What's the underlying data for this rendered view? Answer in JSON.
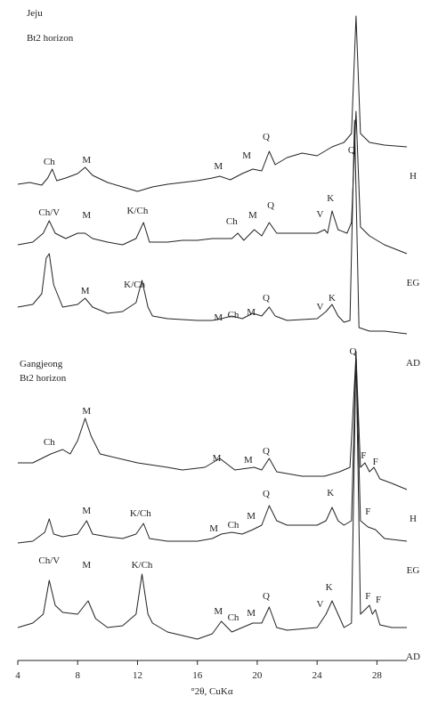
{
  "chart_data": {
    "type": "line",
    "xlabel": "°2θ, CuKα",
    "xlim": [
      4,
      30
    ],
    "xticks": [
      4,
      8,
      12,
      16,
      20,
      24,
      28
    ],
    "ylim": [
      0,
      742
    ],
    "color": "#222222",
    "group_titles": [
      [
        "Jeju",
        "Bt2 horizon"
      ],
      [
        "Gangjeong",
        "Bt2 horizon"
      ]
    ],
    "series": [
      {
        "name": "H",
        "x": [
          4,
          4.8,
          5.6,
          6.0,
          6.3,
          6.6,
          7.2,
          8.0,
          8.5,
          9.0,
          10,
          11,
          12,
          13,
          14,
          15,
          16,
          17,
          17.5,
          18.2,
          19.0,
          19.7,
          20.3,
          20.8,
          21.2,
          22,
          23,
          24,
          25,
          25.8,
          26.3,
          26.6,
          26.9,
          27.5,
          28.5,
          30
        ],
        "values": [
          535,
          537,
          534,
          542,
          552,
          539,
          542,
          547,
          554,
          545,
          537,
          532,
          527,
          532,
          535,
          537,
          539,
          542,
          544,
          540,
          547,
          552,
          550,
          572,
          557,
          565,
          570,
          567,
          577,
          582,
          592,
          724,
          592,
          582,
          579,
          577
        ]
      },
      {
        "name": "EG",
        "x": [
          4,
          5,
          5.7,
          6.1,
          6.5,
          7.2,
          8.0,
          8.5,
          9.0,
          10,
          11,
          11.9,
          12.4,
          12.8,
          14,
          15,
          16,
          17,
          18.3,
          18.7,
          19.1,
          19.8,
          20.3,
          20.8,
          21.3,
          22,
          23,
          24,
          24.5,
          24.7,
          25,
          25.4,
          26,
          26.3,
          26.6,
          26.9,
          27.5,
          28.5,
          30
        ],
        "values": [
          467,
          470,
          480,
          494,
          480,
          474,
          480,
          480,
          474,
          470,
          467,
          474,
          492,
          470,
          470,
          472,
          472,
          474,
          474,
          480,
          472,
          484,
          477,
          492,
          480,
          480,
          480,
          480,
          484,
          480,
          505,
          484,
          480,
          492,
          617,
          487,
          477,
          467,
          457
        ]
      },
      {
        "name": "AD",
        "x": [
          4,
          5,
          5.6,
          5.9,
          6.1,
          6.4,
          7.0,
          8.0,
          8.5,
          9.0,
          10,
          11,
          11.9,
          12.3,
          12.7,
          13,
          14,
          16,
          17,
          17.6,
          18.3,
          19.0,
          19.7,
          20.3,
          20.8,
          21.2,
          22,
          24,
          24.6,
          25,
          25.4,
          25.8,
          26.2,
          26.5,
          26.8,
          27.5,
          28.5,
          30
        ],
        "values": [
          397,
          400,
          412,
          452,
          457,
          422,
          397,
          400,
          407,
          397,
          390,
          392,
          402,
          427,
          397,
          387,
          384,
          382,
          382,
          384,
          387,
          384,
          390,
          387,
          397,
          387,
          382,
          384,
          392,
          400,
          387,
          380,
          382,
          607,
          374,
          370,
          370,
          367
        ]
      },
      {
        "name": "H",
        "x": [
          4,
          5,
          6.2,
          7,
          7.5,
          8.0,
          8.5,
          8.9,
          9.5,
          10,
          12,
          14,
          15,
          16.5,
          17.5,
          18.5,
          19.8,
          20.3,
          20.8,
          21.3,
          23,
          24.5,
          25.5,
          26.2,
          26.6,
          26.9,
          27.2,
          27.5,
          27.8,
          28.2,
          29,
          30
        ],
        "values": [
          222,
          222,
          232,
          237,
          232,
          247,
          272,
          252,
          232,
          230,
          222,
          217,
          214,
          217,
          227,
          214,
          217,
          214,
          227,
          212,
          207,
          207,
          212,
          217,
          344,
          217,
          222,
          212,
          217,
          204,
          199,
          192
        ]
      },
      {
        "name": "EG",
        "x": [
          4,
          5,
          5.8,
          6.1,
          6.4,
          7,
          8,
          8.6,
          9,
          10,
          11,
          11.9,
          12.4,
          12.8,
          14,
          16,
          17,
          17.6,
          18.3,
          19,
          19.7,
          20.3,
          20.8,
          21.3,
          22,
          24,
          24.6,
          25,
          25.4,
          25.8,
          26.3,
          26.6,
          26.9,
          27.4,
          27.9,
          28.5,
          30
        ],
        "values": [
          132,
          134,
          144,
          159,
          142,
          139,
          142,
          157,
          142,
          139,
          137,
          142,
          154,
          137,
          134,
          134,
          137,
          142,
          144,
          142,
          147,
          152,
          174,
          157,
          152,
          152,
          157,
          172,
          157,
          152,
          157,
          347,
          157,
          150,
          147,
          137,
          134
        ]
      },
      {
        "name": "AD",
        "x": [
          4,
          5,
          5.7,
          6.1,
          6.5,
          7,
          8,
          8.7,
          9.2,
          10,
          11,
          11.9,
          12.3,
          12.7,
          13,
          14,
          16,
          17,
          17.6,
          18.3,
          19,
          19.7,
          20.3,
          20.8,
          21.3,
          22,
          24,
          24.6,
          25,
          25.4,
          25.8,
          26.3,
          26.6,
          26.9,
          27.5,
          27.7,
          27.9,
          28.2,
          29,
          30
        ],
        "values": [
          37,
          42,
          52,
          90,
          62,
          54,
          52,
          67,
          47,
          37,
          39,
          52,
          97,
          52,
          42,
          32,
          24,
          30,
          44,
          32,
          37,
          42,
          42,
          60,
          37,
          34,
          37,
          52,
          67,
          52,
          37,
          42,
          347,
          52,
          62,
          52,
          57,
          40,
          37,
          37
        ]
      }
    ],
    "annotations": [
      {
        "text": "Ch",
        "x": 6.1,
        "y": 557
      },
      {
        "text": "M",
        "x": 8.6,
        "y": 559
      },
      {
        "text": "M",
        "x": 17.4,
        "y": 552
      },
      {
        "text": "M",
        "x": 19.3,
        "y": 564
      },
      {
        "text": "Q",
        "x": 20.6,
        "y": 585
      },
      {
        "text": "Q",
        "x": 26.3,
        "y": 570
      },
      {
        "text": "Ch/V",
        "x": 6.1,
        "y": 500
      },
      {
        "text": "M",
        "x": 8.6,
        "y": 497
      },
      {
        "text": "K/Ch",
        "x": 12.0,
        "y": 502
      },
      {
        "text": "Ch",
        "x": 18.3,
        "y": 490
      },
      {
        "text": "M",
        "x": 19.7,
        "y": 497
      },
      {
        "text": "Q",
        "x": 20.9,
        "y": 508
      },
      {
        "text": "V",
        "x": 24.2,
        "y": 498
      },
      {
        "text": "K",
        "x": 24.9,
        "y": 516
      },
      {
        "text": "M",
        "x": 8.5,
        "y": 412
      },
      {
        "text": "K/Ch",
        "x": 11.8,
        "y": 419
      },
      {
        "text": "M",
        "x": 17.4,
        "y": 382
      },
      {
        "text": "Ch",
        "x": 18.4,
        "y": 385
      },
      {
        "text": "M",
        "x": 19.6,
        "y": 388
      },
      {
        "text": "Q",
        "x": 20.6,
        "y": 404
      },
      {
        "text": "V",
        "x": 24.2,
        "y": 394
      },
      {
        "text": "K",
        "x": 25.0,
        "y": 404
      },
      {
        "text": "Q",
        "x": 26.4,
        "y": 344
      },
      {
        "text": "M",
        "x": 8.6,
        "y": 277
      },
      {
        "text": "Ch",
        "x": 6.1,
        "y": 242
      },
      {
        "text": "M",
        "x": 17.3,
        "y": 224
      },
      {
        "text": "M",
        "x": 19.4,
        "y": 222
      },
      {
        "text": "Q",
        "x": 20.6,
        "y": 232
      },
      {
        "text": "F",
        "x": 27.1,
        "y": 227
      },
      {
        "text": "F",
        "x": 27.9,
        "y": 220
      },
      {
        "text": "M",
        "x": 8.6,
        "y": 165
      },
      {
        "text": "K/Ch",
        "x": 12.2,
        "y": 162
      },
      {
        "text": "Q",
        "x": 20.6,
        "y": 184
      },
      {
        "text": "M",
        "x": 19.6,
        "y": 159
      },
      {
        "text": "M",
        "x": 17.1,
        "y": 145
      },
      {
        "text": "Ch",
        "x": 18.4,
        "y": 149
      },
      {
        "text": "K",
        "x": 24.9,
        "y": 185
      },
      {
        "text": "F",
        "x": 27.4,
        "y": 164
      },
      {
        "text": "Ch/V",
        "x": 6.1,
        "y": 109
      },
      {
        "text": "M",
        "x": 8.6,
        "y": 104
      },
      {
        "text": "K/Ch",
        "x": 12.3,
        "y": 104
      },
      {
        "text": "M",
        "x": 17.4,
        "y": 52
      },
      {
        "text": "Ch",
        "x": 18.4,
        "y": 45
      },
      {
        "text": "M",
        "x": 19.6,
        "y": 50
      },
      {
        "text": "Q",
        "x": 20.6,
        "y": 69
      },
      {
        "text": "V",
        "x": 24.2,
        "y": 60
      },
      {
        "text": "K",
        "x": 24.8,
        "y": 79
      },
      {
        "text": "F",
        "x": 27.4,
        "y": 69
      },
      {
        "text": "F",
        "x": 28.1,
        "y": 65
      }
    ]
  }
}
